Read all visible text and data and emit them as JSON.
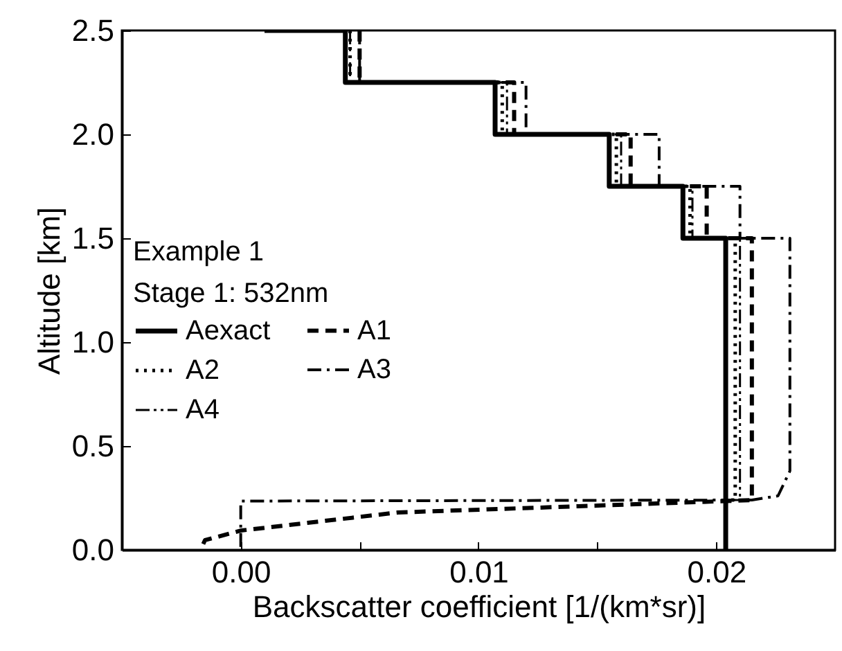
{
  "chart_data": {
    "type": "line",
    "xlabel": "Backscatter coefficient [1/(km*sr)]",
    "ylabel": "Altitude [km]",
    "annotations": [
      "Example 1",
      "Stage 1: 532nm"
    ],
    "xlim": [
      -0.005,
      0.025
    ],
    "ylim": [
      0,
      2.5
    ],
    "xticks": [
      {
        "value": 0,
        "label": "0.00"
      },
      {
        "value": 0.005,
        "label": null
      },
      {
        "value": 0.01,
        "label": "0.01"
      },
      {
        "value": 0.015,
        "label": null
      },
      {
        "value": 0.02,
        "label": "0.02"
      }
    ],
    "yticks": [
      {
        "value": 0,
        "label": "0.0"
      },
      {
        "value": 0.5,
        "label": "0.5"
      },
      {
        "value": 1,
        "label": "1.0"
      },
      {
        "value": 1.5,
        "label": "1.5"
      },
      {
        "value": 2,
        "label": "2.0"
      },
      {
        "value": 2.5,
        "label": "2.5"
      }
    ],
    "legend": "left",
    "grid": false,
    "series": [
      {
        "name": "Aexact",
        "color": "#000000",
        "line_style": "solid",
        "x": [
          0.001,
          0.0044,
          0.0044,
          0.0107,
          0.0107,
          0.0155,
          0.0155,
          0.0186,
          0.0186,
          0.0204,
          0.0204
        ],
        "values": [
          2.5,
          2.5,
          2.25,
          2.25,
          2.0,
          2.0,
          1.75,
          1.75,
          1.5,
          1.5,
          0
        ]
      },
      {
        "name": "A1",
        "color": "#000000",
        "line_style": "dashed",
        "x": [
          0.005,
          0.005,
          0.0115,
          0.0115,
          0.0164,
          0.0164,
          0.0196,
          0.0196,
          0.0215,
          0.0215,
          0.0204,
          0.0142,
          0.0066,
          0.0,
          -0.0015,
          -0.0017
        ],
        "values": [
          2.5,
          2.25,
          2.25,
          2.0,
          2.0,
          1.75,
          1.75,
          1.5,
          1.5,
          0.24,
          0.235,
          0.21,
          0.18,
          0.093,
          0.047,
          0
        ]
      },
      {
        "name": "A2",
        "color": "#000000",
        "line_style": "dotted",
        "x": [
          0.0046,
          0.0046,
          0.011,
          0.011,
          0.0158,
          0.0158,
          0.0189,
          0.0189,
          0.0208,
          0.0208,
          0.0204
        ],
        "values": [
          2.5,
          2.25,
          2.25,
          2.0,
          2.0,
          1.75,
          1.75,
          1.5,
          1.5,
          0.24,
          0.24
        ]
      },
      {
        "name": "A3",
        "color": "#000000",
        "line_style": "dashdot",
        "x": [
          0.005,
          0.005,
          0.012,
          0.012,
          0.0176,
          0.0176,
          0.021,
          0.021,
          0.0231,
          0.0231,
          0.0226,
          0.0215,
          0.0,
          0.0
        ],
        "values": [
          2.5,
          2.25,
          2.25,
          2.0,
          2.0,
          1.75,
          1.75,
          1.5,
          1.5,
          0.38,
          0.26,
          0.24,
          0.235,
          0
        ]
      },
      {
        "name": "A4",
        "color": "#000000",
        "line_style": "dashdotdot",
        "x": [
          0.0046,
          0.0046,
          0.0112,
          0.0112,
          0.016,
          0.016,
          0.019,
          0.019,
          0.021,
          0.021,
          0.0204
        ],
        "values": [
          2.5,
          2.25,
          2.25,
          2.0,
          2.0,
          1.75,
          1.75,
          1.5,
          1.5,
          0.24,
          0.24
        ]
      }
    ]
  }
}
